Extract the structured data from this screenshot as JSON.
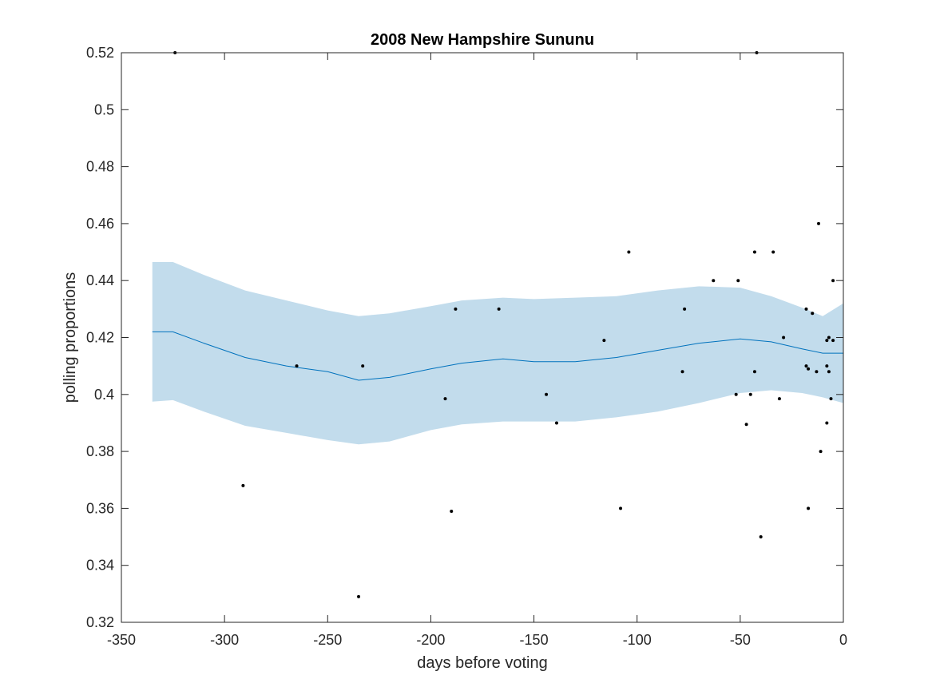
{
  "chart_data": {
    "type": "scatter",
    "title": "2008 New Hampshire Sununu",
    "xlabel": "days before voting",
    "ylabel": "polling proportions",
    "xlim": [
      -350,
      0
    ],
    "ylim": [
      0.32,
      0.52
    ],
    "xticks": [
      -350,
      -300,
      -250,
      -200,
      -150,
      -100,
      -50,
      0
    ],
    "xtick_labels": [
      "-350",
      "-300",
      "-250",
      "-200",
      "-150",
      "-100",
      "-50",
      "0"
    ],
    "yticks": [
      0.32,
      0.34,
      0.36,
      0.38,
      0.4,
      0.42,
      0.44,
      0.46,
      0.48,
      0.5,
      0.52
    ],
    "ytick_labels": [
      "0.32",
      "0.34",
      "0.36",
      "0.38",
      "0.4",
      "0.42",
      "0.44",
      "0.46",
      "0.48",
      "0.5",
      "0.52"
    ],
    "grid": false,
    "colors": {
      "band": "#c2dcec",
      "line": "#0072bd",
      "points": "#000000",
      "axes": "#262626"
    },
    "trend": {
      "x": [
        -335,
        -325,
        -310,
        -290,
        -270,
        -250,
        -235,
        -220,
        -200,
        -185,
        -165,
        -150,
        -130,
        -110,
        -90,
        -70,
        -50,
        -35,
        -20,
        -10,
        0
      ],
      "y": [
        0.422,
        0.422,
        0.418,
        0.413,
        0.41,
        0.408,
        0.405,
        0.406,
        0.409,
        0.411,
        0.4125,
        0.4115,
        0.4115,
        0.413,
        0.4155,
        0.418,
        0.4195,
        0.4185,
        0.416,
        0.4145,
        0.4145
      ]
    },
    "band": {
      "x": [
        -335,
        -325,
        -310,
        -290,
        -270,
        -250,
        -235,
        -220,
        -200,
        -185,
        -165,
        -150,
        -130,
        -110,
        -90,
        -70,
        -50,
        -35,
        -20,
        -10,
        0
      ],
      "upper": [
        0.4465,
        0.4465,
        0.442,
        0.4365,
        0.433,
        0.4295,
        0.4275,
        0.4285,
        0.431,
        0.433,
        0.434,
        0.4335,
        0.434,
        0.4345,
        0.4365,
        0.438,
        0.4375,
        0.4345,
        0.4305,
        0.4275,
        0.432
      ],
      "lower": [
        0.3975,
        0.398,
        0.394,
        0.389,
        0.3865,
        0.384,
        0.3825,
        0.3835,
        0.3875,
        0.3895,
        0.3905,
        0.3905,
        0.3905,
        0.392,
        0.394,
        0.397,
        0.4005,
        0.4015,
        0.4005,
        0.399,
        0.397
      ]
    },
    "points": [
      [
        -324,
        0.52
      ],
      [
        -291,
        0.368
      ],
      [
        -265,
        0.41
      ],
      [
        -235,
        0.329
      ],
      [
        -233,
        0.41
      ],
      [
        -193,
        0.3985
      ],
      [
        -190,
        0.359
      ],
      [
        -188,
        0.43
      ],
      [
        -167,
        0.43
      ],
      [
        -144,
        0.4
      ],
      [
        -139,
        0.39
      ],
      [
        -116,
        0.419
      ],
      [
        -108,
        0.36
      ],
      [
        -104,
        0.45
      ],
      [
        -78,
        0.408
      ],
      [
        -77,
        0.43
      ],
      [
        -63,
        0.44
      ],
      [
        -52,
        0.4
      ],
      [
        -51,
        0.44
      ],
      [
        -47,
        0.3895
      ],
      [
        -45,
        0.4
      ],
      [
        -43,
        0.45
      ],
      [
        -43,
        0.408
      ],
      [
        -42,
        0.52
      ],
      [
        -40,
        0.35
      ],
      [
        -34,
        0.45
      ],
      [
        -31,
        0.3985
      ],
      [
        -29,
        0.42
      ],
      [
        -18,
        0.43
      ],
      [
        -18,
        0.41
      ],
      [
        -17,
        0.409
      ],
      [
        -17,
        0.36
      ],
      [
        -15,
        0.4285
      ],
      [
        -13,
        0.408
      ],
      [
        -12,
        0.46
      ],
      [
        -11,
        0.38
      ],
      [
        -8,
        0.419
      ],
      [
        -8,
        0.39
      ],
      [
        -8,
        0.41
      ],
      [
        -7,
        0.42
      ],
      [
        -7,
        0.408
      ],
      [
        -6,
        0.3985
      ],
      [
        -5,
        0.419
      ],
      [
        -5,
        0.44
      ]
    ]
  }
}
